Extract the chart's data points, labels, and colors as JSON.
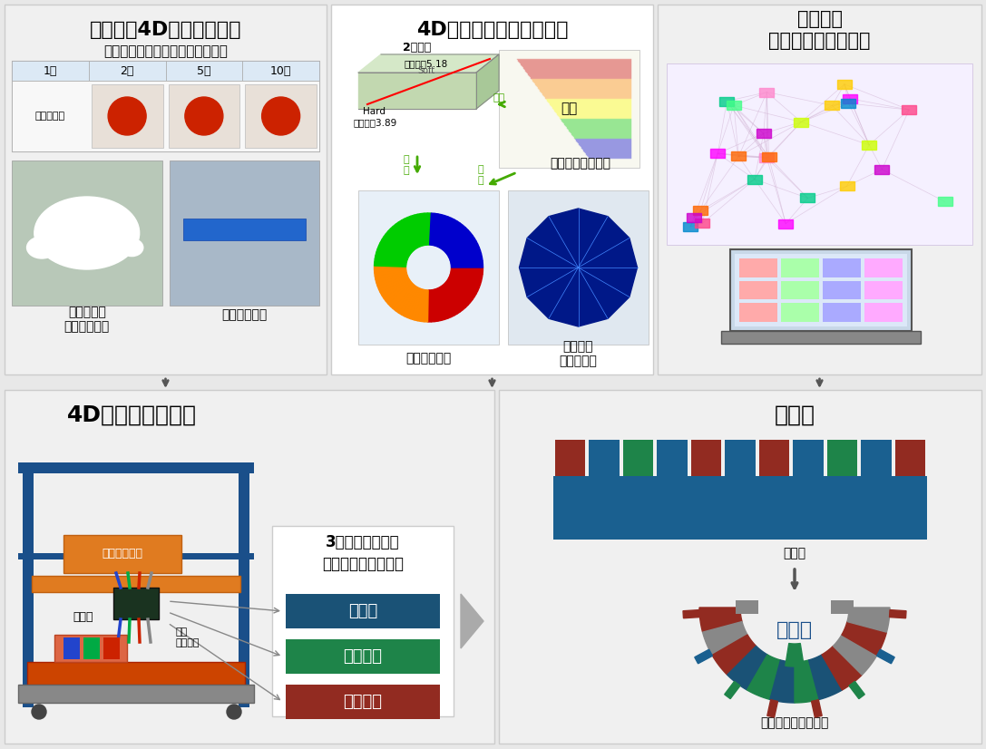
{
  "bg_color": "#e8e8e8",
  "panel_bg": "#f0f0f0",
  "white": "#ffffff",
  "title1": "直交反応4Dインクの開発",
  "title2": "4Dシミュレーターの開発",
  "title3": "ナレッジ\n共有システムの開発",
  "title4": "4Dプリンタの開発",
  "title5": "変形前",
  "sub1": "レーザー照射時間による造形制御",
  "sub1_labels": [
    "1分",
    "2分",
    "5分",
    "10分"
  ],
  "sub1_row": "ゲル化せず",
  "sub2_label1": "人工臓器・\nインプラント",
  "sub2_label2": "送液デバイス",
  "sim_label1": "2層構造",
  "sim_label2": "膨潤率：",
  "sim_val1": "5.18",
  "sim_label3": "Soft",
  "sim_label4": "Hard",
  "sim_label5": "膨潤率：",
  "sim_val2": "3.89",
  "sim_arrow1": "縦膨",
  "sim_arrow2": "膨\n潤",
  "sim_arrow3": "膨\n張",
  "sim_label6": "膨潤",
  "sim_label7": "アクチュエーター",
  "sim_label8": "円筒デバイス",
  "sim_label9": "スマート\nグリッパー",
  "mat_title": "3種類の異種柔軟\n素材（ゲルインク）",
  "mat1": "非膨潤",
  "mat2": "等方膨潤",
  "mat3": "異方膨潤",
  "mat1_color": "#1a5276",
  "mat2_color": "#1e8449",
  "mat3_color": "#922b21",
  "pump_label": "マルチポンプ",
  "obj_label": "造形物",
  "laser_label": "多色\nレーザー",
  "before_label": "変形前",
  "after_label": "変形後",
  "zokei_label": "造形物",
  "fit_label": "他の部品にフィット",
  "teal": "#1a7a6e",
  "blue_dark": "#1a4f8a",
  "orange": "#e07b20",
  "arrow_color": "#808080"
}
